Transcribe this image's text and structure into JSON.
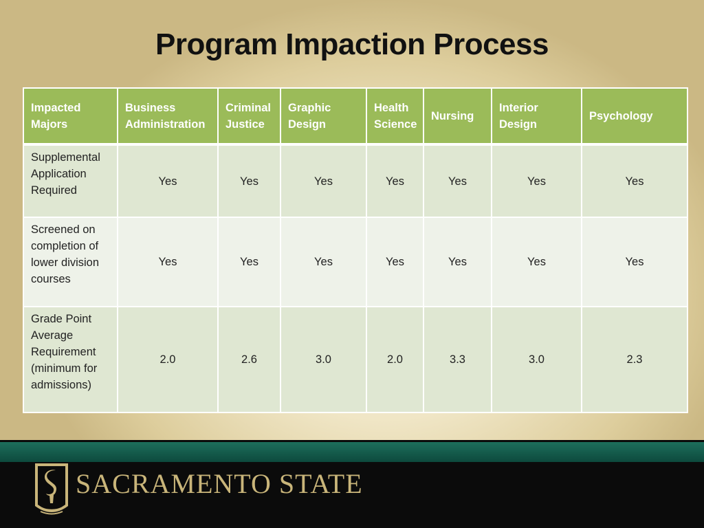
{
  "slide": {
    "title": "Program Impaction Process"
  },
  "table": {
    "header": {
      "corner": "Impacted Majors",
      "columns": [
        "Business Administration",
        "Criminal Justice",
        "Graphic Design",
        "Health Science",
        "Nursing",
        "Interior Design",
        "Psychology"
      ]
    },
    "rows": [
      {
        "label": "Supplemental Application Required",
        "values": [
          "Yes",
          "Yes",
          "Yes",
          "Yes",
          "Yes",
          "Yes",
          "Yes"
        ]
      },
      {
        "label": "Screened on completion of lower division courses",
        "values": [
          "Yes",
          "Yes",
          "Yes",
          "Yes",
          "Yes",
          "Yes",
          "Yes"
        ]
      },
      {
        "label": "Grade Point Average Requirement (minimum for admissions)",
        "values": [
          "2.0",
          "2.6",
          "3.0",
          "2.0",
          "3.3",
          "3.0",
          "2.3"
        ]
      }
    ]
  },
  "footer": {
    "brand": "SACRAMENTO STATE",
    "logo_icon": "torch-s-logo-icon"
  },
  "colors": {
    "header_green": "#9bbb59",
    "band_teal": "#1d6e5c",
    "brand_gold": "#c9b57a"
  }
}
